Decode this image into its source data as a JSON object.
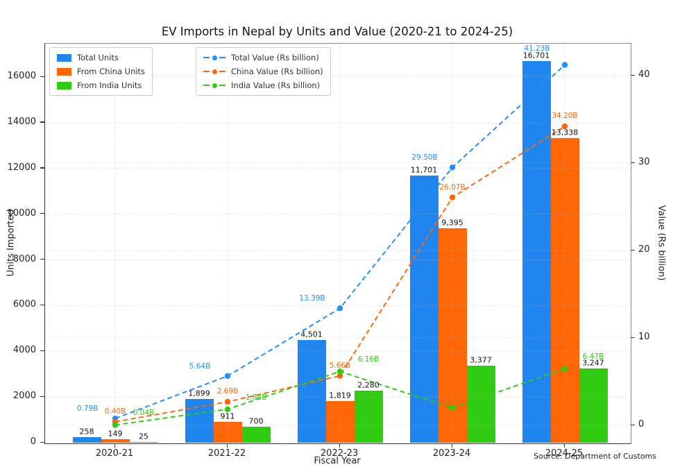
{
  "figure": {
    "title": "EV Imports in Nepal by Units and Value (2020-21 to 2024-25)",
    "xlabel": "Fiscal Year",
    "ylabel_left": "Units Imported",
    "ylabel_right": "Value (Rs billion)",
    "source": "Source: Department of Customs"
  },
  "chart_data": {
    "type": "bar+line",
    "categories": [
      "2020-21",
      "2021-22",
      "2022-23",
      "2023-24",
      "2024-25"
    ],
    "bar_series": [
      {
        "name": "Total Units",
        "color": "#1e86ee",
        "values": [
          258,
          1899,
          4501,
          11701,
          16701
        ],
        "labels": [
          "258",
          "1,899",
          "4,501",
          "11,701",
          "16,701"
        ]
      },
      {
        "name": "From China Units",
        "color": "#ff6605",
        "values": [
          149,
          911,
          1819,
          9395,
          13338
        ],
        "labels": [
          "149",
          "911",
          "1,819",
          "9,395",
          "13,338"
        ]
      },
      {
        "name": "From India Units",
        "color": "#2fcc11",
        "values": [
          25,
          700,
          2280,
          3377,
          3247
        ],
        "labels": [
          "25",
          "700",
          "2,280",
          "3,377",
          "3,247"
        ]
      }
    ],
    "line_series": [
      {
        "name": "Total Value (Rs billion)",
        "color": "#1e90ff",
        "values": [
          0.79,
          5.64,
          13.39,
          29.5,
          41.23
        ],
        "labels": [
          "0.79B",
          "5.64B",
          "13.39B",
          "29.50B",
          "41.23B"
        ]
      },
      {
        "name": "China Value (Rs billion)",
        "color": "#ff6605",
        "values": [
          0.4,
          2.69,
          5.66,
          26.07,
          34.2
        ],
        "labels": [
          "0.40B",
          "2.69B",
          "5.66B",
          "26.07B",
          "34.20B"
        ]
      },
      {
        "name": "India Value (Rs billion)",
        "color": "#2fcc11",
        "values": [
          0.04,
          1.84,
          6.16,
          2.0,
          6.47
        ],
        "labels": [
          "0.04B",
          "1.84B",
          "6.16B",
          "",
          "6.47B"
        ]
      }
    ],
    "axes": {
      "left": {
        "ticks": [
          0,
          2000,
          4000,
          6000,
          8000,
          10000,
          12000,
          14000,
          16000
        ],
        "labels": [
          "0",
          "2000",
          "4000",
          "6000",
          "8000",
          "10000",
          "12000",
          "14000",
          "16000"
        ],
        "range": [
          0,
          17500
        ]
      },
      "right": {
        "ticks": [
          0,
          10,
          20,
          30,
          40
        ],
        "labels": [
          "0",
          "10",
          "20",
          "30",
          "40"
        ],
        "range": [
          -2.1,
          43.7
        ]
      },
      "grid": true,
      "legend_position": "upper left"
    }
  }
}
